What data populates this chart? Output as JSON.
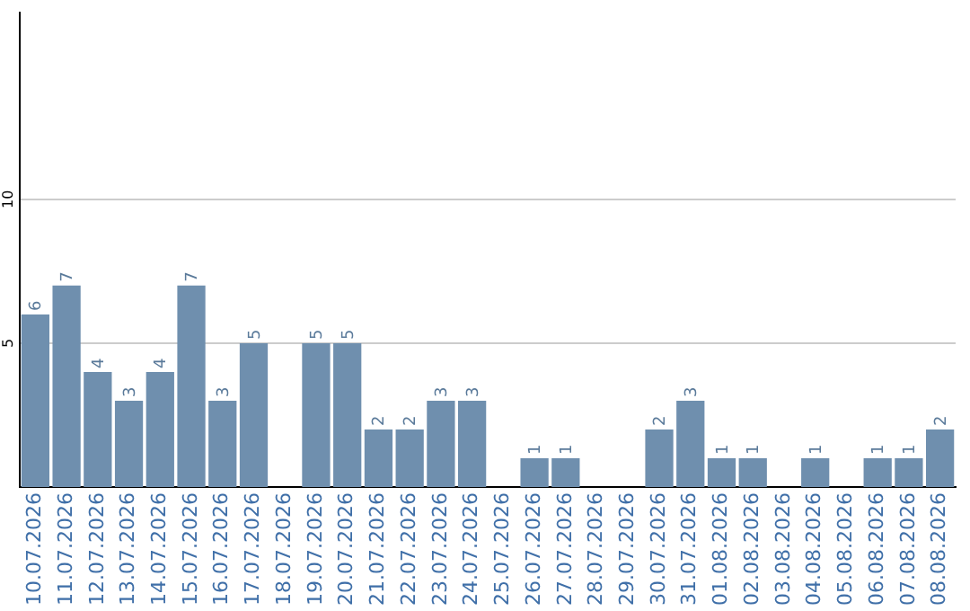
{
  "chart_data": {
    "type": "bar",
    "categories": [
      "10.07.2026",
      "11.07.2026",
      "12.07.2026",
      "13.07.2026",
      "14.07.2026",
      "15.07.2026",
      "16.07.2026",
      "17.07.2026",
      "18.07.2026",
      "19.07.2026",
      "20.07.2026",
      "21.07.2026",
      "22.07.2026",
      "23.07.2026",
      "24.07.2026",
      "25.07.2026",
      "26.07.2026",
      "27.07.2026",
      "28.07.2026",
      "29.07.2026",
      "30.07.2026",
      "31.07.2026",
      "01.08.2026",
      "02.08.2026",
      "03.08.2026",
      "04.08.2026",
      "05.08.2026",
      "06.08.2026",
      "07.08.2026",
      "08.08.2026"
    ],
    "values": [
      6,
      7,
      4,
      3,
      4,
      7,
      3,
      5,
      0,
      5,
      5,
      2,
      2,
      3,
      3,
      0,
      1,
      1,
      0,
      0,
      2,
      3,
      1,
      1,
      0,
      1,
      0,
      1,
      1,
      2
    ],
    "value_labels": [
      "6",
      "7",
      "4",
      "3",
      "4",
      "7",
      "3",
      "5",
      null,
      "5",
      "5",
      "2",
      "2",
      "3",
      "3",
      null,
      "1",
      "1",
      null,
      null,
      "2",
      "3",
      "1",
      "1",
      null,
      "1",
      null,
      "1",
      "1",
      "2"
    ],
    "color": "#6f8fae",
    "ylim": [
      0,
      16.5
    ],
    "yticks": [
      5,
      10
    ],
    "grid": "y",
    "legend": false
  }
}
